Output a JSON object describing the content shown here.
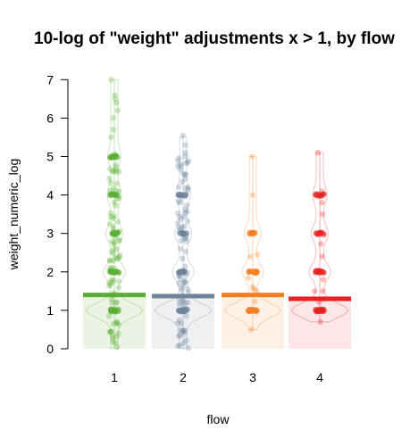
{
  "chart_data": {
    "type": "scatter",
    "title": "10-log of \"weight\" adjustments x > 1, by flow",
    "xlabel": "flow",
    "ylabel": "weight_numeric_log",
    "categories": [
      "1",
      "2",
      "3",
      "4"
    ],
    "ylim": [
      0,
      7
    ],
    "yticks": [
      0,
      1,
      2,
      3,
      4,
      5,
      6,
      7
    ],
    "grid": false,
    "series": [
      {
        "category": "1",
        "color": "#5aae33",
        "fill": "#eaf3e4",
        "mean": 1.4,
        "min": 0,
        "max": 7.0,
        "clusters": [
          1,
          2,
          3,
          4,
          5
        ],
        "outliers": [
          5.5,
          5.7,
          6.0,
          6.2,
          6.4,
          6.5,
          6.6,
          7.0
        ]
      },
      {
        "category": "2",
        "color": "#6e849a",
        "fill": "#eef0f2",
        "mean": 1.37,
        "min": 0,
        "max": 5.55,
        "clusters": [
          1,
          2,
          3,
          4
        ],
        "outliers": [
          4.8,
          5.0,
          5.1,
          5.3,
          5.55
        ]
      },
      {
        "category": "3",
        "color": "#f57d20",
        "fill": "#fdf1e6",
        "mean": 1.4,
        "min": 0.5,
        "max": 5.0,
        "clusters": [
          1,
          2,
          3
        ],
        "outliers": [
          0.5,
          1.6,
          2.4,
          4.0,
          5.0
        ]
      },
      {
        "category": "4",
        "color": "#e8201f",
        "fill": "#fde6e8",
        "mean": 1.3,
        "min": 0.7,
        "max": 5.1,
        "clusters": [
          1,
          2,
          3,
          4
        ],
        "outliers": [
          0.7,
          1.5,
          2.4,
          3.5,
          3.8,
          4.1,
          5.1
        ]
      }
    ]
  }
}
